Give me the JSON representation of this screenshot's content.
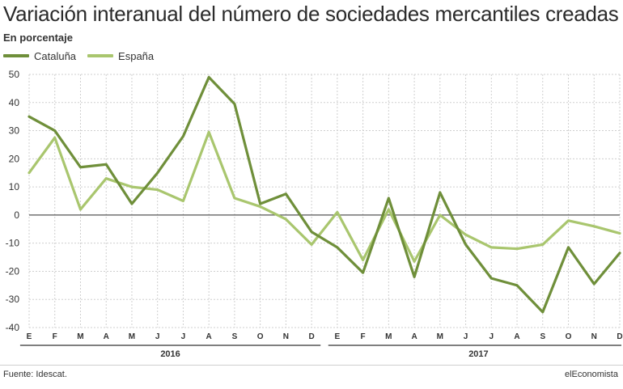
{
  "title": "Variación interanual del número de sociedades mercantiles creadas",
  "subtitle": "En porcentaje",
  "source": "Fuente: Idescat.",
  "brand": "elEconomista",
  "colors": {
    "cataluna": "#6f8f3a",
    "espana": "#a9c66e",
    "grid": "#cfcfcf",
    "zero": "#555555"
  },
  "chart_data": {
    "type": "line",
    "title": "Variación interanual del número de sociedades mercantiles creadas",
    "subtitle": "En porcentaje",
    "ylim": [
      -40,
      50
    ],
    "yticks": [
      50,
      40,
      30,
      20,
      10,
      0,
      -10,
      -20,
      -30,
      -40
    ],
    "grid": true,
    "legend_position": "top-left",
    "categories": [
      "E",
      "F",
      "M",
      "A",
      "M",
      "J",
      "J",
      "A",
      "S",
      "O",
      "N",
      "D",
      "E",
      "F",
      "M",
      "A",
      "M",
      "J",
      "J",
      "A",
      "S",
      "O",
      "N",
      "D"
    ],
    "year_groups": [
      {
        "label": "2016",
        "start": 0,
        "end": 11
      },
      {
        "label": "2017",
        "start": 12,
        "end": 23
      }
    ],
    "series": [
      {
        "name": "Cataluña",
        "values": [
          35,
          30,
          17,
          18,
          4,
          15,
          28,
          49,
          39.5,
          4,
          7.5,
          -6,
          -11.5,
          -20.5,
          6,
          -22,
          8,
          -10.5,
          -22.5,
          -25,
          -34.5,
          -11.5,
          -24.5,
          -13.5
        ]
      },
      {
        "name": "España",
        "values": [
          15,
          27.5,
          2,
          13,
          10,
          9,
          5,
          29.5,
          6,
          3,
          -1.5,
          -10.5,
          1,
          -16,
          2,
          -16.5,
          0,
          -7,
          -11.5,
          -12,
          -10.5,
          -2,
          -4,
          -6.5
        ]
      }
    ]
  }
}
